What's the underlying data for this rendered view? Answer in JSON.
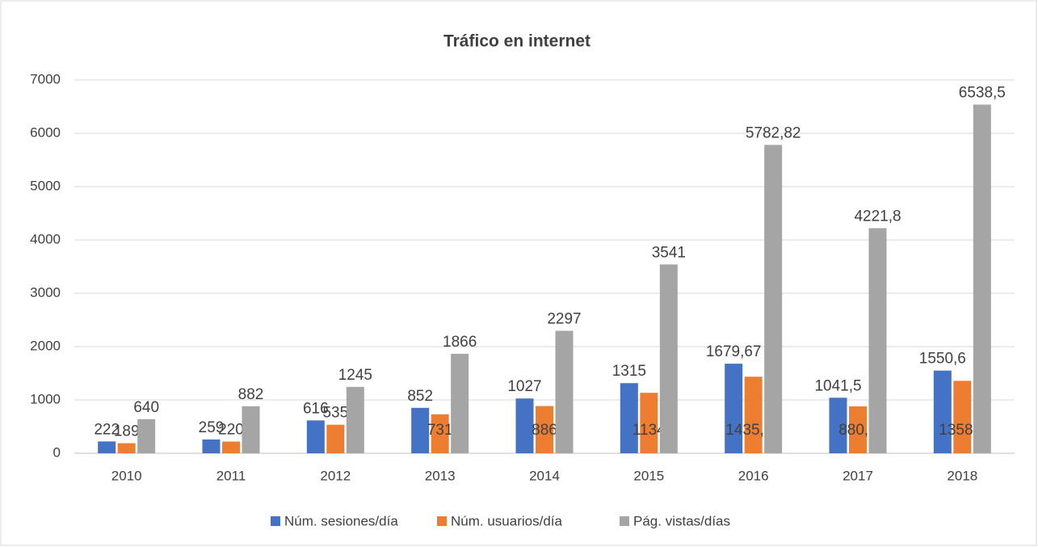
{
  "chart_data": {
    "type": "bar",
    "title": "Tráfico en internet",
    "categories": [
      "2010",
      "2011",
      "2012",
      "2013",
      "2014",
      "2015",
      "2016",
      "2017",
      "2018"
    ],
    "series": [
      {
        "name": "Núm. sesiones/día",
        "color": "#4472c4",
        "values": [
          222,
          259,
          616,
          852,
          1027,
          1315,
          1679.67,
          1041.5,
          1550.6
        ],
        "value_labels": [
          "222",
          "259",
          "616",
          "852",
          "1027",
          "1315",
          "1679,67",
          "1041,5",
          "1550,6"
        ]
      },
      {
        "name": "Núm. usuarios/día",
        "color": "#ed7d31",
        "values": [
          189,
          220,
          535,
          731,
          886,
          1134,
          1435.48,
          880.6,
          1358.3
        ],
        "value_labels": [
          "189",
          "220",
          "535",
          "731",
          "886",
          "1134",
          "1435,48",
          "880,6",
          "1358,3"
        ]
      },
      {
        "name": "Pág. vistas/días",
        "color": "#a5a5a5",
        "values": [
          640,
          882,
          1245,
          1866,
          2297,
          3541,
          5782.82,
          4221.8,
          6538.5
        ],
        "value_labels": [
          "640",
          "882",
          "1245",
          "1866",
          "2297",
          "3541",
          "5782,82",
          "4221,8",
          "6538,5"
        ]
      }
    ],
    "ylim": [
      0,
      7000
    ],
    "yticks": [
      0,
      1000,
      2000,
      3000,
      4000,
      5000,
      6000,
      7000
    ],
    "grid": true,
    "legend": "bottom"
  }
}
